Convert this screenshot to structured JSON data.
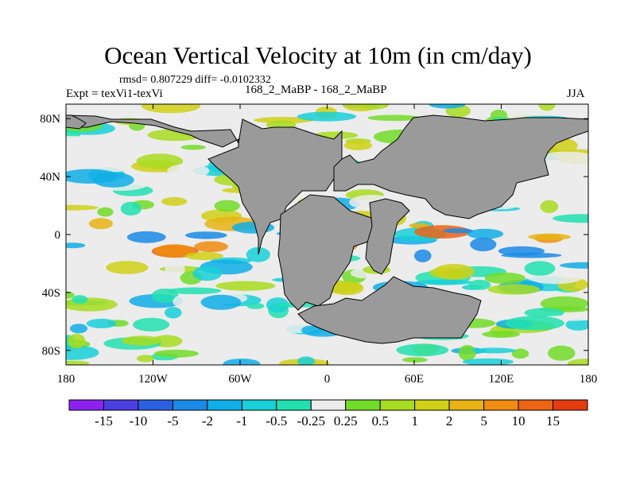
{
  "title": "Ocean Vertical Velocity at 10m (in cm/day)",
  "stats_line": "rmsd= 0.807229 diff= -0.0102332",
  "expt_label": "Expt = texVi1-texVi",
  "runs_label": "168_2_MaBP - 168_2_MaBP",
  "season": "JJA",
  "y_ticks": [
    {
      "label": "80N",
      "lat": 80
    },
    {
      "label": "40N",
      "lat": 40
    },
    {
      "label": "0",
      "lat": 0
    },
    {
      "label": "40S",
      "lat": -40
    },
    {
      "label": "80S",
      "lat": -80
    }
  ],
  "x_ticks": [
    {
      "label": "180",
      "lon": -180
    },
    {
      "label": "120W",
      "lon": -120
    },
    {
      "label": "60W",
      "lon": -60
    },
    {
      "label": "0",
      "lon": 0
    },
    {
      "label": "60E",
      "lon": 60
    },
    {
      "label": "120E",
      "lon": 120
    },
    {
      "label": "180",
      "lon": 180
    }
  ],
  "colorbar": {
    "colors": [
      "#8d22f0",
      "#4b3ee0",
      "#2a60e0",
      "#1a8ae6",
      "#10aee6",
      "#17d0d8",
      "#22e0b0",
      "#ececec",
      "#72dc28",
      "#a8dc20",
      "#d0d018",
      "#e8b414",
      "#f08c10",
      "#ec6414",
      "#e43c10"
    ],
    "labels": [
      "-15",
      "-10",
      "-5",
      "-2",
      "-1",
      "-0.5",
      "-0.25",
      "0.25",
      "0.5",
      "1",
      "2",
      "5",
      "10",
      "15"
    ]
  },
  "land_color": "#9a9a9a"
}
